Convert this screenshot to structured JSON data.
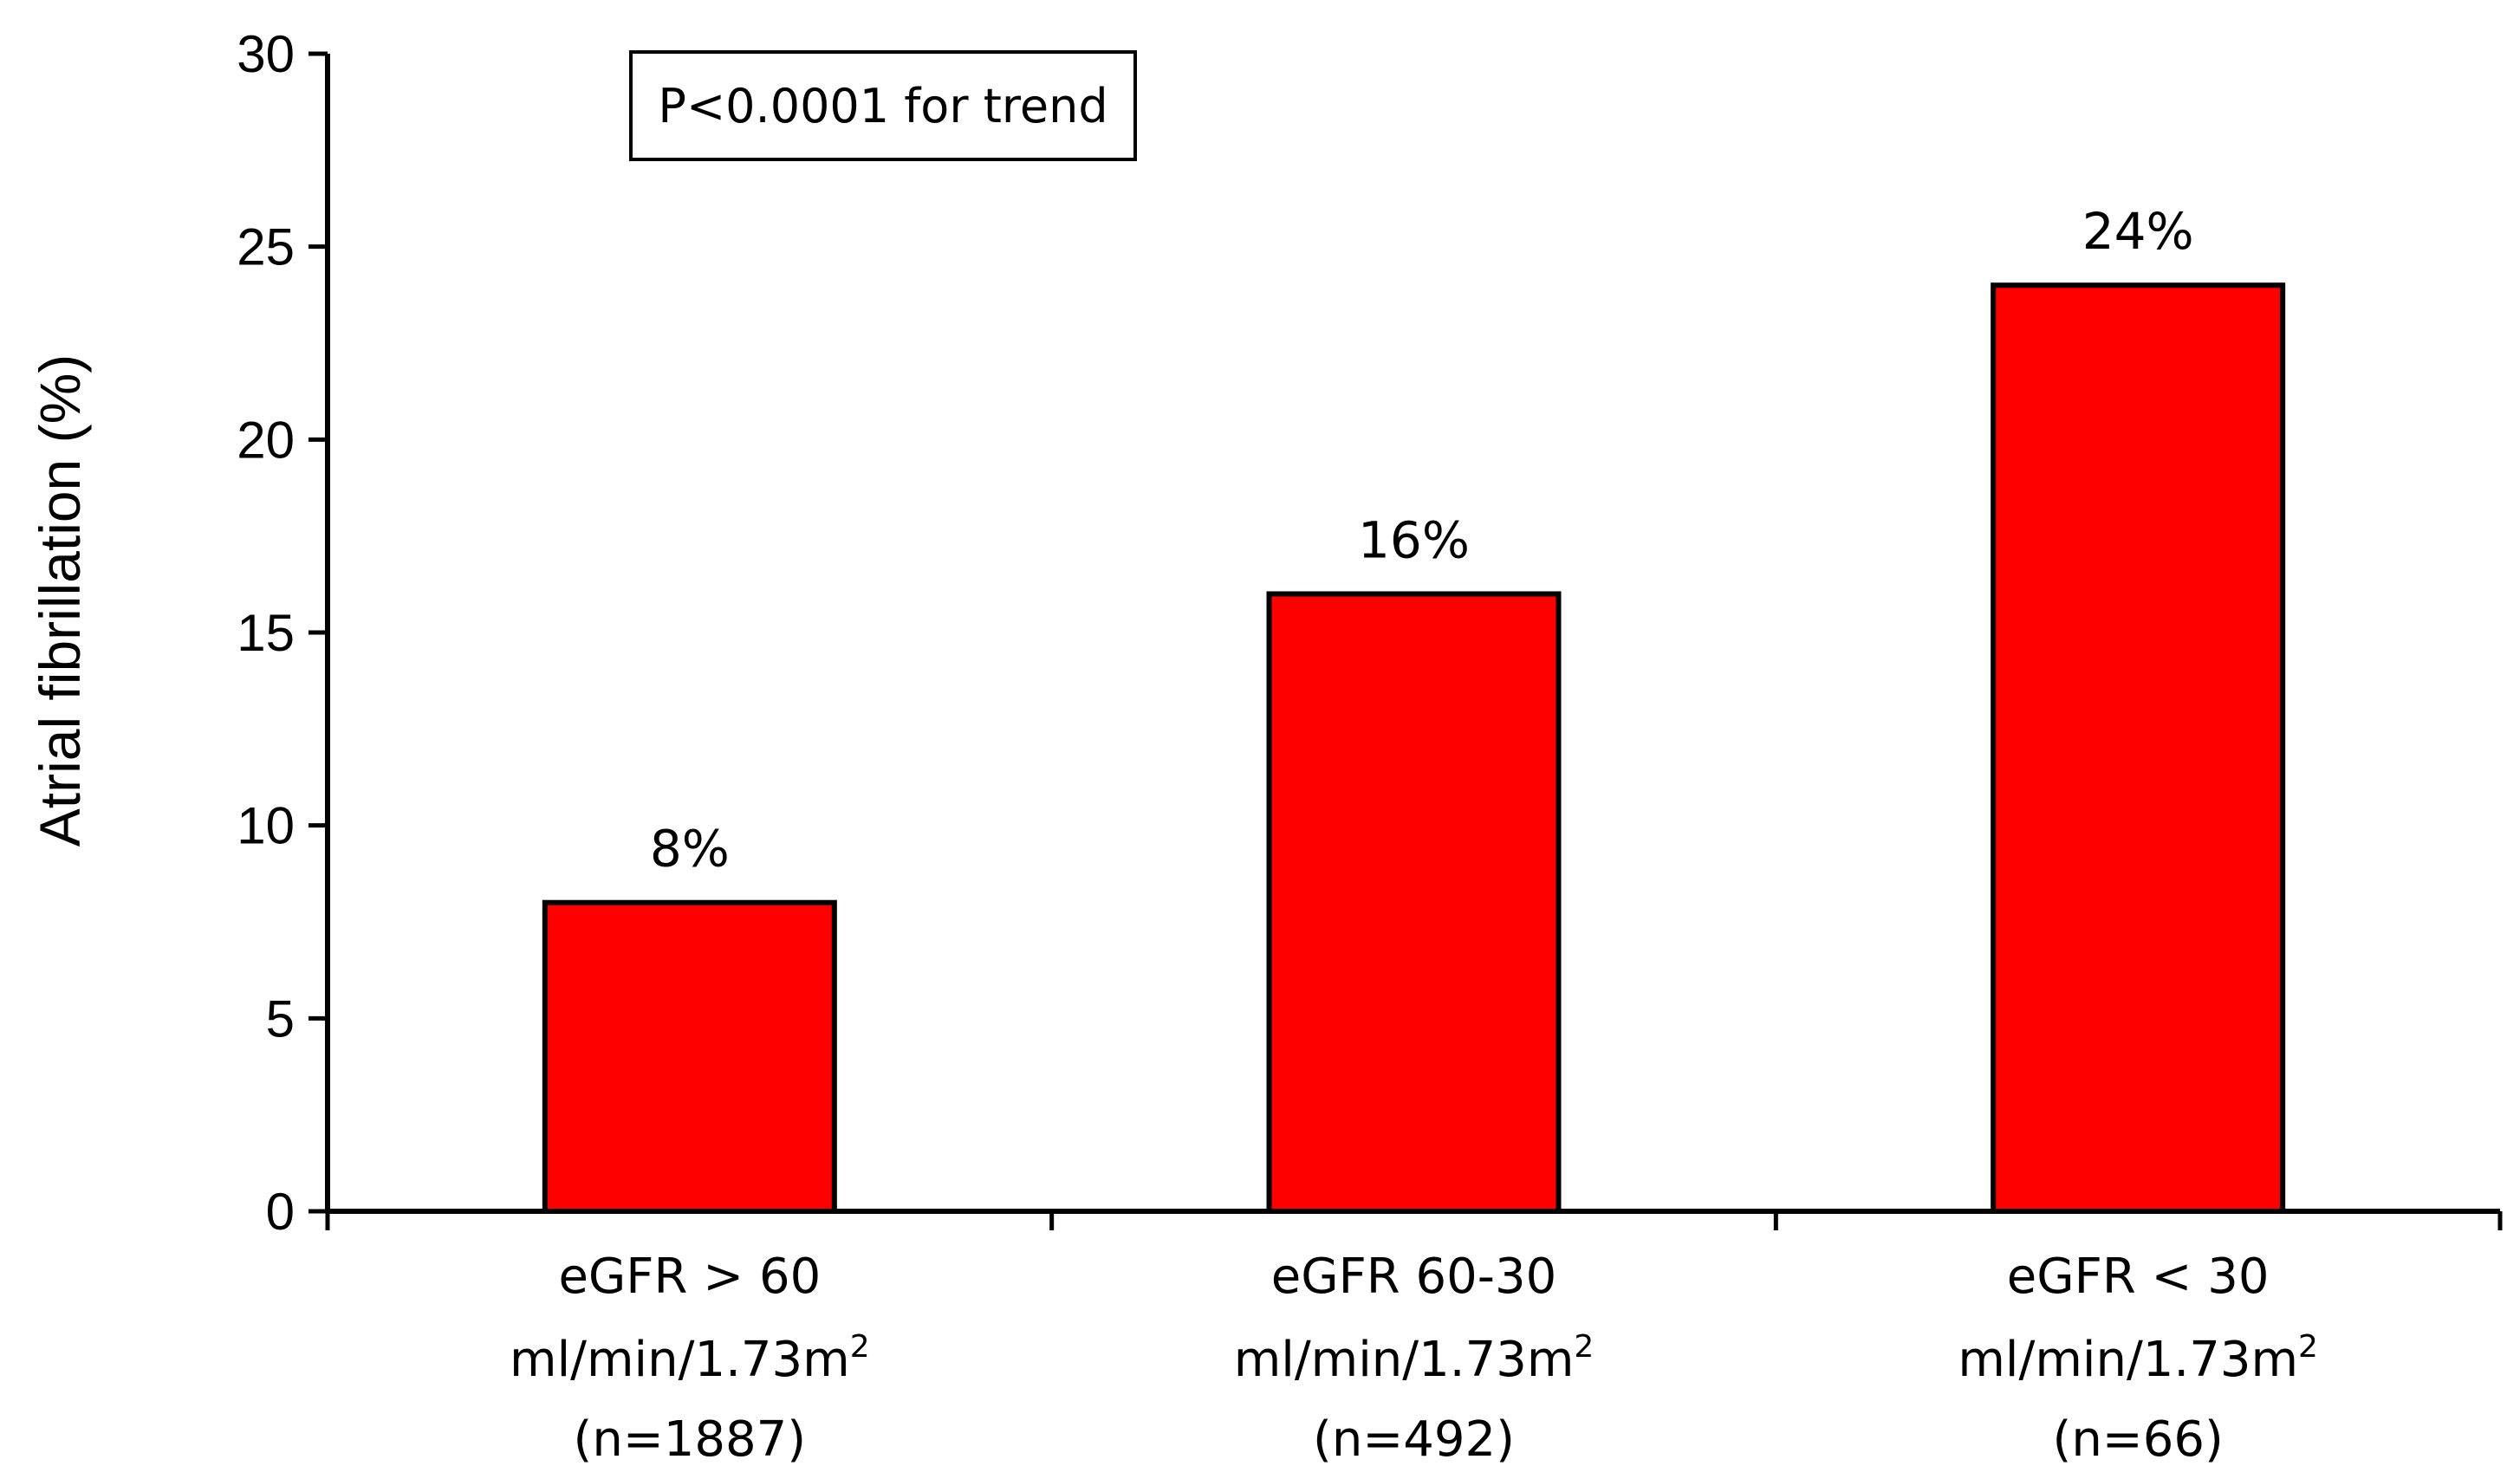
{
  "chart_data": {
    "type": "bar",
    "title": "",
    "xlabel": "",
    "ylabel": "Atrial fibrillation (%)",
    "ylim": [
      0,
      30
    ],
    "yticks": [
      0,
      5,
      10,
      15,
      20,
      25,
      30
    ],
    "grid": false,
    "bar_color": "#ff0000",
    "categories": [
      {
        "line1": "eGFR > 60",
        "line2_base": "ml/min/1.73m",
        "line2_sup": "2",
        "line3": "(n=1887)"
      },
      {
        "line1": "eGFR 60-30",
        "line2_base": "ml/min/1.73m",
        "line2_sup": "2",
        "line3": "(n=492)"
      },
      {
        "line1": "eGFR < 30",
        "line2_base": "ml/min/1.73m",
        "line2_sup": "2",
        "line3": "(n=66)"
      }
    ],
    "values": [
      8,
      16,
      24
    ],
    "data_labels": [
      "8%",
      "16%",
      "24%"
    ],
    "annotation": "P<0.0001 for trend"
  }
}
